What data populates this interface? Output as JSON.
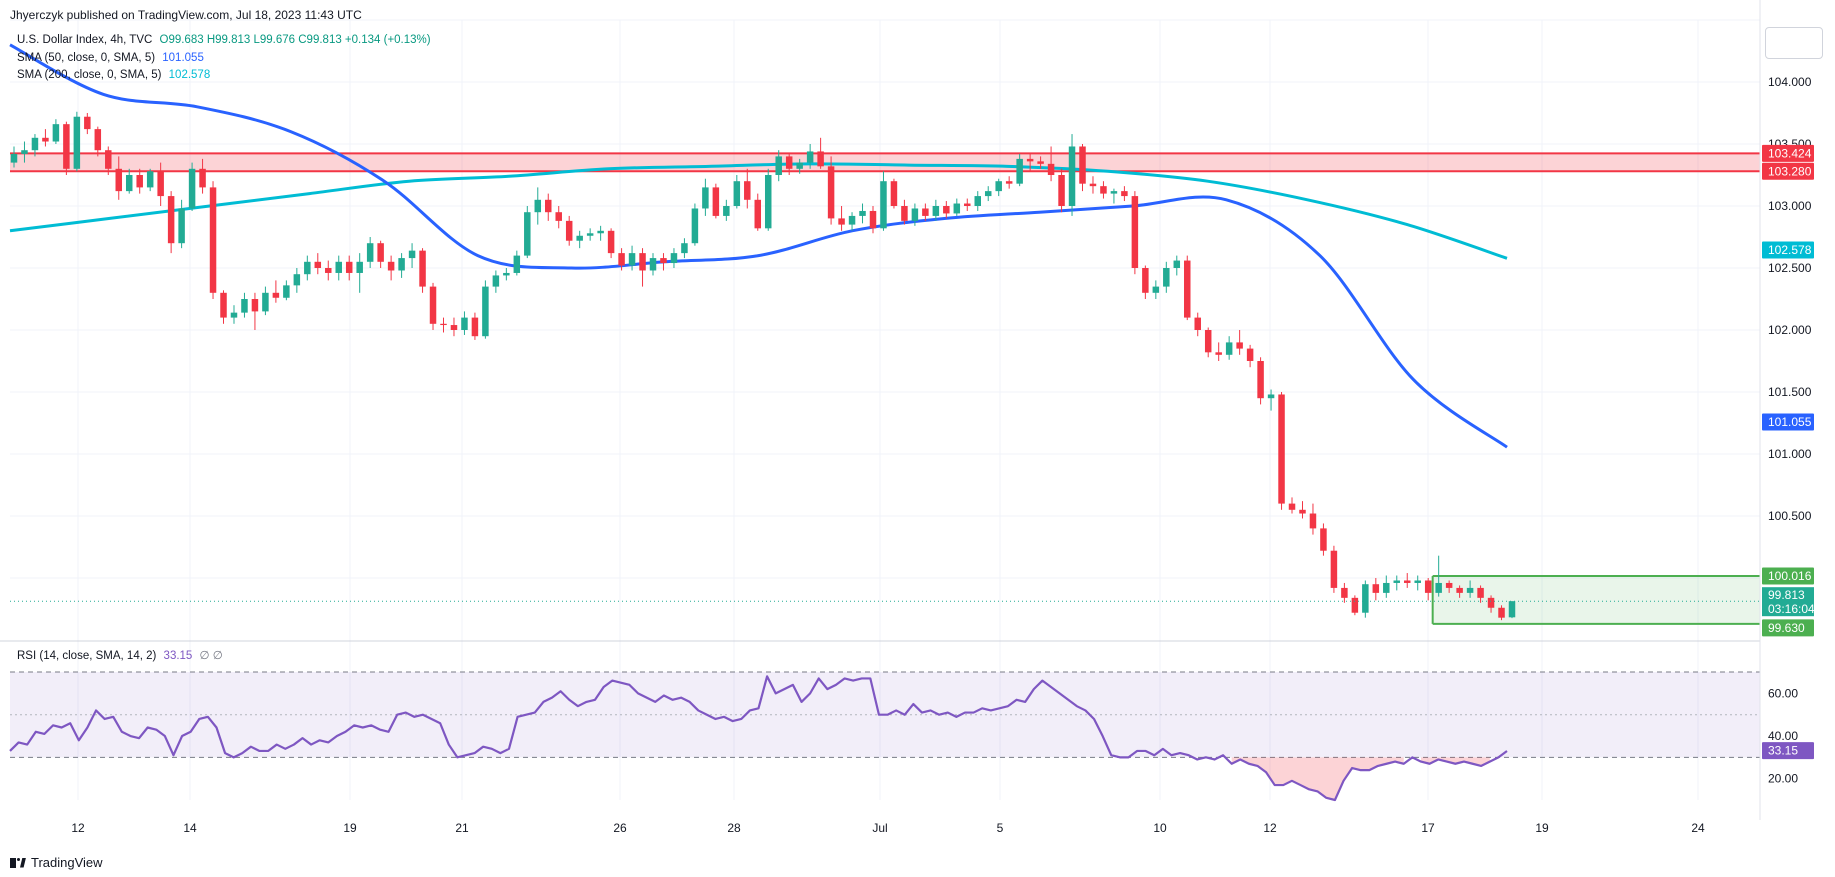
{
  "header": {
    "publisher": "Jhyerczyk published on TradingView.com, Jul 18, 2023 11:43 UTC"
  },
  "legend": {
    "symbol": "U.S. Dollar Index, 4h, TVC",
    "ohlc": "O99.683  H99.813  L99.676  C99.813  +0.134 (+0.13%)",
    "sma50_label": "SMA (50, close, 0, SMA, 5)",
    "sma50_value": "101.055",
    "sma200_label": "SMA (200, close, 0, SMA, 5)",
    "sma200_value": "102.578",
    "rsi_label": "RSI (14, close, SMA, 14, 2)",
    "rsi_value": "33.15",
    "rsi_extra": "∅  ∅"
  },
  "footer": {
    "brand": "TradingView"
  },
  "colors": {
    "up": "#26a69a",
    "upBody": "#22ab94",
    "down": "#f23645",
    "sma50": "#2962ff",
    "sma200": "#00bcd4",
    "rsi": "#7e57c2",
    "resistance": "#f23645",
    "range": "#4caf50"
  },
  "chart_data": {
    "type": "candlestick",
    "price_axis": {
      "min": 99.5,
      "max": 104.5,
      "ticks": [
        "104.000",
        "103.500",
        "103.000",
        "102.500",
        "102.000",
        "101.500",
        "101.000",
        "100.500"
      ]
    },
    "x_axis": {
      "labels": [
        "12",
        "14",
        "19",
        "21",
        "26",
        "28",
        "Jul",
        "5",
        "10",
        "12",
        "17",
        "19",
        "24"
      ]
    },
    "resistance_zone": {
      "top": 103.424,
      "bottom": 103.28,
      "top_label": "103.424",
      "bottom_label": "103.280"
    },
    "range_box": {
      "top": 100.016,
      "bottom": 99.63,
      "top_label": "100.016",
      "bottom_label": "99.630"
    },
    "last_price": {
      "value": 99.813,
      "label": "99.813",
      "countdown": "03:16:04"
    },
    "sma50_label": "101.055",
    "sma200_label": "102.578",
    "candles_ohlc": [
      [
        103.35,
        103.48,
        103.31,
        103.42
      ],
      [
        103.42,
        103.52,
        103.35,
        103.45
      ],
      [
        103.45,
        103.58,
        103.4,
        103.55
      ],
      [
        103.55,
        103.62,
        103.48,
        103.52
      ],
      [
        103.52,
        103.7,
        103.5,
        103.66
      ],
      [
        103.66,
        103.68,
        103.25,
        103.3
      ],
      [
        103.3,
        103.76,
        103.28,
        103.72
      ],
      [
        103.72,
        103.75,
        103.58,
        103.62
      ],
      [
        103.62,
        103.64,
        103.4,
        103.45
      ],
      [
        103.45,
        103.48,
        103.25,
        103.3
      ],
      [
        103.3,
        103.4,
        103.05,
        103.12
      ],
      [
        103.12,
        103.3,
        103.1,
        103.25
      ],
      [
        103.25,
        103.3,
        103.1,
        103.15
      ],
      [
        103.15,
        103.3,
        103.12,
        103.28
      ],
      [
        103.28,
        103.35,
        103.0,
        103.08
      ],
      [
        103.08,
        103.12,
        102.62,
        102.7
      ],
      [
        102.7,
        103.05,
        102.66,
        102.98
      ],
      [
        102.98,
        103.35,
        102.96,
        103.3
      ],
      [
        103.3,
        103.38,
        103.1,
        103.15
      ],
      [
        103.15,
        103.2,
        102.25,
        102.3
      ],
      [
        102.3,
        102.32,
        102.05,
        102.1
      ],
      [
        102.1,
        102.2,
        102.05,
        102.14
      ],
      [
        102.14,
        102.3,
        102.1,
        102.25
      ],
      [
        102.25,
        102.3,
        102.0,
        102.15
      ],
      [
        102.15,
        102.35,
        102.12,
        102.3
      ],
      [
        102.3,
        102.4,
        102.22,
        102.26
      ],
      [
        102.26,
        102.4,
        102.24,
        102.36
      ],
      [
        102.36,
        102.5,
        102.3,
        102.45
      ],
      [
        102.45,
        102.6,
        102.4,
        102.55
      ],
      [
        102.55,
        102.62,
        102.45,
        102.5
      ],
      [
        102.5,
        102.56,
        102.4,
        102.46
      ],
      [
        102.46,
        102.6,
        102.4,
        102.55
      ],
      [
        102.55,
        102.6,
        102.4,
        102.46
      ],
      [
        102.46,
        102.62,
        102.3,
        102.55
      ],
      [
        102.55,
        102.75,
        102.5,
        102.7
      ],
      [
        102.7,
        102.72,
        102.5,
        102.55
      ],
      [
        102.55,
        102.6,
        102.4,
        102.48
      ],
      [
        102.48,
        102.62,
        102.42,
        102.58
      ],
      [
        102.58,
        102.7,
        102.5,
        102.64
      ],
      [
        102.64,
        102.66,
        102.3,
        102.35
      ],
      [
        102.35,
        102.38,
        102.0,
        102.05
      ],
      [
        102.05,
        102.1,
        101.98,
        102.04
      ],
      [
        102.04,
        102.1,
        101.95,
        102.0
      ],
      [
        102.0,
        102.15,
        101.96,
        102.1
      ],
      [
        102.1,
        102.14,
        101.92,
        101.95
      ],
      [
        101.95,
        102.4,
        101.93,
        102.35
      ],
      [
        102.35,
        102.48,
        102.3,
        102.44
      ],
      [
        102.44,
        102.5,
        102.4,
        102.46
      ],
      [
        102.46,
        102.64,
        102.44,
        102.6
      ],
      [
        102.6,
        103.0,
        102.58,
        102.95
      ],
      [
        102.95,
        103.15,
        102.85,
        103.05
      ],
      [
        103.05,
        103.1,
        102.88,
        102.95
      ],
      [
        102.95,
        103.0,
        102.82,
        102.88
      ],
      [
        102.88,
        102.92,
        102.68,
        102.72
      ],
      [
        102.72,
        102.8,
        102.66,
        102.76
      ],
      [
        102.76,
        102.82,
        102.72,
        102.78
      ],
      [
        102.78,
        102.84,
        102.72,
        102.8
      ],
      [
        102.8,
        102.82,
        102.58,
        102.62
      ],
      [
        102.62,
        102.66,
        102.48,
        102.52
      ],
      [
        102.52,
        102.68,
        102.48,
        102.62
      ],
      [
        102.62,
        102.66,
        102.35,
        102.48
      ],
      [
        102.48,
        102.62,
        102.44,
        102.58
      ],
      [
        102.58,
        102.62,
        102.48,
        102.54
      ],
      [
        102.54,
        102.66,
        102.5,
        102.62
      ],
      [
        102.62,
        102.74,
        102.58,
        102.7
      ],
      [
        102.7,
        103.02,
        102.68,
        102.98
      ],
      [
        102.98,
        103.22,
        102.92,
        103.15
      ],
      [
        103.15,
        103.18,
        102.9,
        102.92
      ],
      [
        102.92,
        103.05,
        102.88,
        103.0
      ],
      [
        103.0,
        103.25,
        102.98,
        103.2
      ],
      [
        103.2,
        103.3,
        102.98,
        103.05
      ],
      [
        103.05,
        103.1,
        102.8,
        102.82
      ],
      [
        102.82,
        103.3,
        102.8,
        103.25
      ],
      [
        103.25,
        103.45,
        103.2,
        103.4
      ],
      [
        103.4,
        103.42,
        103.25,
        103.3
      ],
      [
        103.3,
        103.38,
        103.26,
        103.35
      ],
      [
        103.35,
        103.5,
        103.3,
        103.44
      ],
      [
        103.44,
        103.55,
        103.3,
        103.32
      ],
      [
        103.32,
        103.4,
        102.85,
        102.9
      ],
      [
        102.9,
        103.0,
        102.8,
        102.85
      ],
      [
        102.85,
        102.95,
        102.8,
        102.92
      ],
      [
        102.92,
        103.02,
        102.86,
        102.96
      ],
      [
        102.96,
        103.0,
        102.78,
        102.82
      ],
      [
        102.82,
        103.28,
        102.8,
        103.2
      ],
      [
        103.2,
        103.22,
        102.98,
        103.0
      ],
      [
        103.0,
        103.05,
        102.85,
        102.88
      ],
      [
        102.88,
        103.02,
        102.84,
        102.98
      ],
      [
        102.98,
        103.02,
        102.88,
        102.92
      ],
      [
        102.92,
        103.05,
        102.88,
        103.0
      ],
      [
        103.0,
        103.04,
        102.9,
        102.94
      ],
      [
        102.94,
        103.06,
        102.92,
        103.02
      ],
      [
        103.02,
        103.06,
        102.96,
        103.0
      ],
      [
        103.0,
        103.12,
        102.96,
        103.08
      ],
      [
        103.08,
        103.16,
        103.04,
        103.12
      ],
      [
        103.12,
        103.22,
        103.08,
        103.2
      ],
      [
        103.2,
        103.24,
        103.14,
        103.18
      ],
      [
        103.18,
        103.42,
        103.16,
        103.38
      ],
      [
        103.38,
        103.42,
        103.28,
        103.36
      ],
      [
        103.36,
        103.4,
        103.3,
        103.34
      ],
      [
        103.34,
        103.48,
        103.2,
        103.25
      ],
      [
        103.25,
        103.3,
        102.95,
        103.0
      ],
      [
        103.0,
        103.58,
        102.92,
        103.48
      ],
      [
        103.48,
        103.5,
        103.12,
        103.18
      ],
      [
        103.18,
        103.24,
        103.1,
        103.16
      ],
      [
        103.16,
        103.2,
        103.06,
        103.1
      ],
      [
        103.1,
        103.14,
        103.02,
        103.12
      ],
      [
        103.12,
        103.16,
        103.04,
        103.08
      ],
      [
        103.08,
        103.12,
        102.45,
        102.5
      ],
      [
        102.5,
        102.52,
        102.25,
        102.3
      ],
      [
        102.3,
        102.4,
        102.25,
        102.35
      ],
      [
        102.35,
        102.55,
        102.3,
        102.5
      ],
      [
        102.5,
        102.6,
        102.44,
        102.56
      ],
      [
        102.56,
        102.6,
        102.08,
        102.1
      ],
      [
        102.1,
        102.14,
        101.95,
        102.0
      ],
      [
        102.0,
        102.02,
        101.78,
        101.82
      ],
      [
        101.82,
        101.9,
        101.75,
        101.8
      ],
      [
        101.8,
        101.95,
        101.76,
        101.9
      ],
      [
        101.9,
        102.0,
        101.8,
        101.85
      ],
      [
        101.85,
        101.88,
        101.7,
        101.75
      ],
      [
        101.75,
        101.78,
        101.4,
        101.45
      ],
      [
        101.45,
        101.52,
        101.35,
        101.48
      ],
      [
        101.48,
        101.5,
        100.55,
        100.6
      ],
      [
        100.6,
        100.65,
        100.52,
        100.55
      ],
      [
        100.55,
        100.62,
        100.48,
        100.52
      ],
      [
        100.52,
        100.6,
        100.35,
        100.4
      ],
      [
        100.4,
        100.44,
        100.18,
        100.22
      ],
      [
        100.22,
        100.26,
        99.88,
        99.92
      ],
      [
        99.92,
        99.96,
        99.8,
        99.84
      ],
      [
        99.84,
        99.86,
        99.7,
        99.72
      ],
      [
        99.72,
        99.98,
        99.68,
        99.95
      ],
      [
        99.95,
        100.0,
        99.82,
        99.88
      ],
      [
        99.88,
        100.02,
        99.84,
        99.96
      ],
      [
        99.96,
        100.02,
        99.9,
        99.98
      ],
      [
        99.98,
        100.04,
        99.92,
        99.96
      ],
      [
        99.96,
        100.02,
        99.9,
        99.98
      ],
      [
        99.98,
        100.0,
        99.82,
        99.88
      ],
      [
        99.88,
        100.18,
        99.85,
        99.96
      ],
      [
        99.96,
        99.98,
        99.88,
        99.92
      ],
      [
        99.92,
        99.94,
        99.84,
        99.88
      ],
      [
        99.88,
        99.98,
        99.84,
        99.92
      ],
      [
        99.92,
        99.94,
        99.8,
        99.84
      ],
      [
        99.84,
        99.86,
        99.72,
        99.76
      ],
      [
        99.76,
        99.78,
        99.66,
        99.68
      ],
      [
        99.683,
        99.813,
        99.676,
        99.813
      ]
    ],
    "sma50": [
      104.3,
      103.9,
      103.8,
      103.6,
      103.2,
      102.6,
      102.5,
      102.55,
      102.6,
      102.8,
      102.9,
      102.95,
      103.0,
      103.05,
      102.6,
      101.6,
      101.055
    ],
    "sma200": [
      102.8,
      102.9,
      103.0,
      103.1,
      103.2,
      103.24,
      103.3,
      103.32,
      103.34,
      103.33,
      103.32,
      103.28,
      103.2,
      103.05,
      102.85,
      102.578
    ],
    "rsi": {
      "ticks": [
        "60.00",
        "40.00",
        "20.00"
      ],
      "bands": {
        "upper": 70,
        "mid": 50,
        "lower": 30
      },
      "range": [
        10,
        78
      ],
      "values": [
        33,
        37,
        36,
        42,
        41,
        45,
        44,
        46,
        38,
        44,
        52,
        48,
        49,
        42,
        40,
        39,
        44,
        43,
        40,
        31,
        40,
        42,
        48,
        49,
        44,
        32,
        30,
        32,
        35,
        33,
        33,
        36,
        34,
        36,
        39,
        36,
        38,
        37,
        40,
        42,
        45,
        44,
        45,
        43,
        42,
        50,
        51,
        49,
        50,
        48,
        46,
        36,
        30,
        31,
        32,
        35,
        34,
        32,
        34,
        49,
        50,
        51,
        56,
        58,
        61,
        57,
        54,
        56,
        57,
        63,
        66,
        65,
        64,
        60,
        58,
        56,
        59,
        57,
        58,
        56,
        52,
        50,
        48,
        49,
        47,
        48,
        52,
        53,
        68,
        60,
        62,
        64,
        56,
        60,
        67,
        62,
        64,
        67,
        66,
        67,
        67,
        50,
        50,
        52,
        50,
        55,
        51,
        52,
        50,
        51,
        49,
        51,
        51,
        53,
        52,
        53,
        54,
        57,
        56,
        62,
        66,
        63,
        60,
        57,
        54,
        52,
        48,
        40,
        31,
        30,
        30,
        33,
        33,
        31,
        34,
        31,
        32,
        31,
        29,
        30,
        29,
        31,
        27,
        29,
        27,
        26,
        23,
        17,
        17,
        19,
        17,
        15,
        14,
        11,
        10,
        19,
        25,
        24,
        24,
        26,
        27,
        28,
        27,
        30,
        28,
        27,
        29,
        28,
        27,
        28,
        27,
        26,
        28,
        30,
        33
      ],
      "value_label": "33.15"
    }
  }
}
